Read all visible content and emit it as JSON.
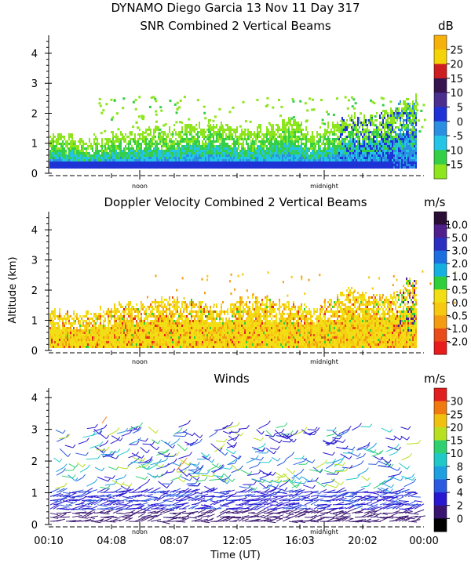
{
  "figure": {
    "title_line1": "DYNAMO Diego Garcia  13 Nov 11 Day 317",
    "y_label": "Altitude (km)",
    "x_label": "Time (UT)",
    "x_ticks": [
      "00:10",
      "04:08",
      "08:07",
      "12:05",
      "16:03",
      "20:02",
      "00:00"
    ],
    "marker_noon": "noon",
    "marker_midnight": "midnight"
  },
  "chart_data": [
    {
      "type": "heatmap",
      "title": "SNR Combined 2 Vertical Beams",
      "unit": "dB",
      "xlabel": "",
      "ylabel": "",
      "ylim": [
        0,
        4.6
      ],
      "y_ticks": [
        "0",
        "1",
        "2",
        "3",
        "4"
      ],
      "colorbar_labels": [
        "25",
        "20",
        "15",
        "10",
        "5",
        "0",
        "-5",
        "-10",
        "-15"
      ],
      "colorbar_colors": [
        "#f6b10a",
        "#f4d407",
        "#cd1f21",
        "#36144f",
        "#4b2f8f",
        "#1e33d6",
        "#2a8fe0",
        "#23c4e6",
        "#35cf47",
        "#8ee51e"
      ],
      "top_height_profile_km": [
        1.25,
        1.2,
        1.1,
        1.2,
        1.3,
        1.35,
        1.4,
        1.5,
        1.55,
        1.7,
        1.4,
        1.45,
        1.5,
        1.8,
        1.2,
        1.6,
        1.9,
        1.7,
        2.1,
        2.4,
        2.6
      ]
    },
    {
      "type": "heatmap",
      "title": "Doppler Velocity Combined 2 Vertical Beams",
      "unit": "m/s",
      "ylabel": "Altitude (km)",
      "ylim": [
        0,
        4.6
      ],
      "y_ticks": [
        "0",
        "1",
        "2",
        "3",
        "4"
      ],
      "colorbar_labels": [
        "10.0",
        "5.0",
        "3.0",
        "2.0",
        "1.0",
        "0.5",
        "0.0",
        "-0.5",
        "-1.0",
        "-2.0"
      ],
      "colorbar_colors": [
        "#2a0f35",
        "#4f1f8c",
        "#2a2fbf",
        "#1d6fe0",
        "#16b0e0",
        "#2ecf3a",
        "#f2de14",
        "#f6c810",
        "#f39c12",
        "#e84c1b",
        "#e81c1c"
      ],
      "top_height_profile_km": [
        1.3,
        1.25,
        1.2,
        1.3,
        1.5,
        1.45,
        1.6,
        1.7,
        1.5,
        1.4,
        1.6,
        1.7,
        1.6,
        1.5,
        1.3,
        1.6,
        2.0,
        1.8,
        1.7,
        2.2,
        2.6
      ]
    },
    {
      "type": "scatter",
      "title": "Winds",
      "unit": "m/s",
      "xlabel": "Time (UT)",
      "ylim": [
        0,
        4.3
      ],
      "y_ticks": [
        "0",
        "1",
        "2",
        "3",
        "4"
      ],
      "colorbar_labels": [
        "30",
        "25",
        "20",
        "15",
        "10",
        "8",
        "6",
        "4",
        "2",
        "0"
      ],
      "colorbar_colors": [
        "#e02020",
        "#f07a10",
        "#f0c010",
        "#b8e020",
        "#30d070",
        "#20c8c8",
        "#1ea0e0",
        "#2a5ae0",
        "#2818d0",
        "#3a1570",
        "#000000"
      ]
    }
  ]
}
